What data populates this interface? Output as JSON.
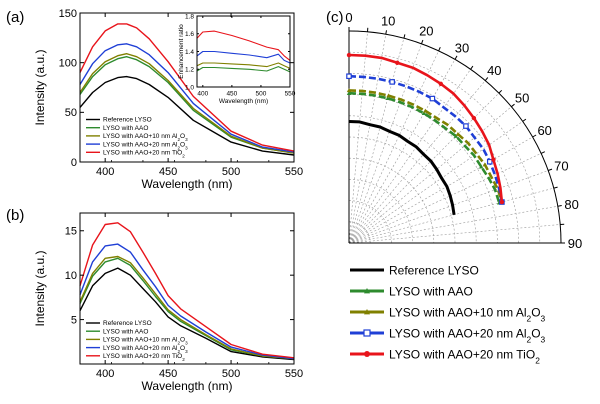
{
  "chart_data": [
    {
      "panel": "(a)",
      "type": "line",
      "xlabel": "Wavelength (nm)",
      "ylabel": "Intensity (a.u.)",
      "xlim": [
        380,
        550
      ],
      "ylim": [
        0,
        150
      ],
      "xticks": [
        400,
        450,
        500,
        550
      ],
      "yticks": [
        0,
        50,
        100,
        150
      ],
      "series": [
        {
          "name": "Reference LYSO",
          "color": "#000000",
          "x": [
            380,
            390,
            400,
            410,
            417,
            425,
            435,
            450,
            470,
            500,
            525,
            550
          ],
          "y": [
            55,
            70,
            80,
            85,
            86,
            84,
            78,
            65,
            42,
            20,
            11,
            7
          ]
        },
        {
          "name": "LYSO with AAO",
          "color": "#2e8b2e",
          "x": [
            380,
            390,
            400,
            410,
            417,
            425,
            435,
            450,
            470,
            500,
            525,
            550
          ],
          "y": [
            68,
            86,
            98,
            104,
            106,
            103,
            96,
            80,
            52,
            25,
            14,
            9
          ]
        },
        {
          "name": "LYSO with AAO+10 nm Al2O3",
          "color": "#808000",
          "x": [
            380,
            390,
            400,
            410,
            417,
            425,
            435,
            450,
            470,
            500,
            525,
            550
          ],
          "y": [
            70,
            89,
            101,
            107,
            109,
            106,
            99,
            82,
            54,
            26,
            14,
            9
          ]
        },
        {
          "name": "LYSO with AAO+20 nm Al2O3",
          "color": "#1f3fd6",
          "x": [
            380,
            390,
            400,
            410,
            417,
            425,
            435,
            450,
            470,
            500,
            525,
            550
          ],
          "y": [
            78,
            99,
            112,
            118,
            119,
            116,
            108,
            90,
            59,
            28,
            15,
            10
          ]
        },
        {
          "name": "LYSO with AAO+20 nm TiO2",
          "color": "#e8141b",
          "x": [
            380,
            390,
            400,
            410,
            417,
            425,
            435,
            450,
            470,
            500,
            525,
            550
          ],
          "y": [
            90,
            116,
            132,
            139,
            139,
            135,
            124,
            101,
            66,
            31,
            17,
            11
          ]
        }
      ],
      "inset": {
        "xlabel": "Wavelength (nm)",
        "ylabel": "Enhancement ratio",
        "xlim": [
          390,
          550
        ],
        "ylim": [
          1.0,
          1.8
        ],
        "xticks": [
          400,
          450,
          500,
          550
        ],
        "yticks": [
          1.0,
          1.2,
          1.4,
          1.6,
          1.8
        ],
        "series": [
          {
            "name": "LYSO with AAO",
            "color": "#2e8b2e",
            "x": [
              390,
              400,
              420,
              450,
              480,
              510,
              530,
              540,
              550
            ],
            "y": [
              1.18,
              1.22,
              1.22,
              1.21,
              1.2,
              1.18,
              1.23,
              1.2,
              1.17
            ]
          },
          {
            "name": "LYSO with AAO+10 nm Al2O3",
            "color": "#808000",
            "x": [
              390,
              400,
              420,
              450,
              480,
              510,
              530,
              540,
              550
            ],
            "y": [
              1.24,
              1.27,
              1.27,
              1.26,
              1.25,
              1.23,
              1.27,
              1.24,
              1.21
            ]
          },
          {
            "name": "LYSO with AAO+20 nm Al2O3",
            "color": "#1f3fd6",
            "x": [
              390,
              400,
              420,
              450,
              480,
              510,
              530,
              540,
              550
            ],
            "y": [
              1.35,
              1.4,
              1.4,
              1.38,
              1.36,
              1.33,
              1.37,
              1.3,
              1.27
            ]
          },
          {
            "name": "LYSO with AAO+20 nm TiO2",
            "color": "#e8141b",
            "x": [
              390,
              400,
              420,
              450,
              480,
              510,
              530,
              540,
              550
            ],
            "y": [
              1.55,
              1.62,
              1.63,
              1.58,
              1.52,
              1.45,
              1.42,
              1.35,
              1.3
            ]
          }
        ]
      }
    },
    {
      "panel": "(b)",
      "type": "line",
      "xlabel": "Wavelength (nm)",
      "ylabel": "Intensity (a.u.)",
      "xlim": [
        380,
        550
      ],
      "ylim": [
        0,
        17
      ],
      "xticks": [
        400,
        450,
        500,
        550
      ],
      "yticks": [
        5,
        10,
        15
      ],
      "series": [
        {
          "name": "Reference LYSO",
          "color": "#000000",
          "x": [
            380,
            390,
            400,
            410,
            420,
            430,
            440,
            450,
            460,
            480,
            500,
            525,
            550
          ],
          "y": [
            6.0,
            8.8,
            10.2,
            10.8,
            10.0,
            8.5,
            7.0,
            5.3,
            4.3,
            2.9,
            1.4,
            0.8,
            0.5
          ]
        },
        {
          "name": "LYSO with AAO",
          "color": "#2e8b2e",
          "x": [
            380,
            390,
            400,
            410,
            420,
            430,
            440,
            450,
            460,
            480,
            500,
            525,
            550
          ],
          "y": [
            6.8,
            9.9,
            11.5,
            11.9,
            11.1,
            9.4,
            7.6,
            5.9,
            4.8,
            3.2,
            1.6,
            0.9,
            0.6
          ]
        },
        {
          "name": "LYSO with AAO+10 nm Al2O3",
          "color": "#808000",
          "x": [
            380,
            390,
            400,
            410,
            420,
            430,
            440,
            450,
            460,
            480,
            500,
            525,
            550
          ],
          "y": [
            7.0,
            10.2,
            11.9,
            12.1,
            11.4,
            9.7,
            7.9,
            6.1,
            5.0,
            3.3,
            1.7,
            0.9,
            0.6
          ]
        },
        {
          "name": "LYSO with AAO+20 nm Al2O3",
          "color": "#1f3fd6",
          "x": [
            380,
            390,
            400,
            410,
            420,
            430,
            440,
            450,
            460,
            480,
            500,
            525,
            550
          ],
          "y": [
            7.8,
            11.5,
            13.3,
            13.5,
            12.6,
            10.6,
            8.7,
            6.6,
            5.4,
            3.6,
            1.9,
            1.0,
            0.6
          ]
        },
        {
          "name": "LYSO with AAO+20 nm TiO2",
          "color": "#e8141b",
          "x": [
            380,
            390,
            400,
            410,
            420,
            430,
            440,
            450,
            460,
            480,
            500,
            525,
            550
          ],
          "y": [
            8.8,
            13.4,
            15.7,
            15.9,
            14.9,
            12.6,
            10.2,
            7.7,
            6.2,
            4.2,
            2.2,
            1.1,
            0.7
          ]
        }
      ]
    },
    {
      "panel": "(c)",
      "type": "polar",
      "angle_ticks": [
        0,
        10,
        20,
        30,
        40,
        50,
        60,
        70,
        80,
        90
      ],
      "rmax": 150,
      "series": [
        {
          "name": "Reference LYSO",
          "color": "#000000",
          "marker": "none",
          "angles": [
            0,
            5,
            10,
            15,
            20,
            25,
            30,
            35,
            40,
            45,
            50,
            55,
            60,
            65,
            70,
            75
          ],
          "r": [
            86,
            86,
            85,
            85,
            84,
            84,
            83,
            83,
            82,
            82,
            81,
            80,
            80,
            79,
            78,
            77
          ]
        },
        {
          "name": "LYSO with AAO",
          "color": "#2e8b2e",
          "marker": "triangle",
          "angles": [
            0,
            5,
            10,
            15,
            20,
            25,
            30,
            35,
            40,
            45,
            50,
            55,
            60,
            65,
            70,
            75
          ],
          "r": [
            106,
            106,
            106,
            106,
            106,
            106,
            106,
            106,
            106,
            107,
            107,
            108,
            108,
            109,
            110,
            110
          ]
        },
        {
          "name": "LYSO with AAO+10 nm Al2O3",
          "color": "#808000",
          "marker": "triangle",
          "angles": [
            0,
            5,
            10,
            15,
            20,
            25,
            30,
            35,
            40,
            45,
            50,
            55,
            60,
            65,
            70,
            75
          ],
          "r": [
            108,
            108,
            108,
            108,
            108,
            108,
            108,
            108,
            109,
            109,
            110,
            110,
            111,
            111,
            112,
            112
          ]
        },
        {
          "name": "LYSO with AAO+20 nm Al2O3",
          "color": "#1f3fd6",
          "marker": "square",
          "angles": [
            0,
            5,
            10,
            15,
            20,
            25,
            30,
            35,
            40,
            45,
            50,
            55,
            60,
            65,
            70,
            75
          ],
          "r": [
            118,
            118,
            118,
            118,
            118,
            118,
            118,
            117,
            117,
            117,
            116,
            116,
            115,
            114,
            113,
            112
          ]
        },
        {
          "name": "LYSO with AAO+20 nm TiO2",
          "color": "#e8141b",
          "marker": "circle",
          "angles": [
            0,
            5,
            10,
            15,
            20,
            25,
            30,
            35,
            40,
            45,
            50,
            55,
            60,
            65,
            70,
            75
          ],
          "r": [
            133,
            133,
            133,
            132,
            132,
            131,
            130,
            129,
            127,
            125,
            123,
            121,
            118,
            116,
            114,
            112
          ]
        }
      ]
    }
  ],
  "labels": {
    "a": "(a)",
    "b": "(b)",
    "c": "(c)"
  },
  "legend": [
    {
      "prefix": "Reference LYSO",
      "sub": "",
      "suffix": "",
      "color": "#000000",
      "marker": "none"
    },
    {
      "prefix": "LYSO with AAO",
      "sub": "",
      "suffix": "",
      "color": "#2e8b2e",
      "marker": "triangle"
    },
    {
      "prefix": "LYSO with AAO+10 nm Al",
      "sub": "2",
      "mid": "O",
      "sub2": "3",
      "color": "#808000",
      "marker": "triangle"
    },
    {
      "prefix": "LYSO with AAO+20 nm Al",
      "sub": "2",
      "mid": "O",
      "sub2": "3",
      "color": "#1f3fd6",
      "marker": "square"
    },
    {
      "prefix": "LYSO with AAO+20 nm TiO",
      "sub": "2",
      "mid": "",
      "sub2": "",
      "color": "#e8141b",
      "marker": "circle"
    }
  ]
}
